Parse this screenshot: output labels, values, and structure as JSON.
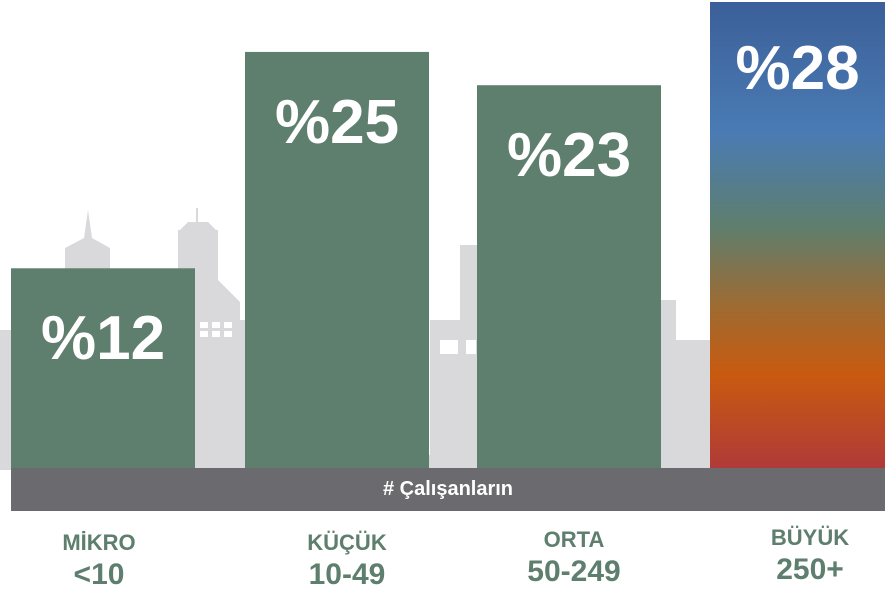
{
  "chart_data": {
    "type": "bar",
    "categories": [
      {
        "name": "MİKRO",
        "range": "<10"
      },
      {
        "name": "KÜÇÜK",
        "range": "10-49"
      },
      {
        "name": "ORTA",
        "range": "50-249"
      },
      {
        "name": "BÜYÜK",
        "range": "250+"
      }
    ],
    "values": [
      12,
      25,
      23,
      28
    ],
    "value_labels": [
      "%12",
      "%25",
      "%23",
      "%28"
    ],
    "xlabel": "# Çalışanların",
    "ylim": [
      0,
      28
    ],
    "grid": false,
    "colors": {
      "bar": "#5e7e6e",
      "highlight_gradient": [
        "#3c5f98",
        "#4a7bb4",
        "#5e7e6e",
        "#a06a30",
        "#c85a10",
        "#b03a38"
      ],
      "skyline": "#d9d9db",
      "axis_band": "#6a6a6f",
      "category_text": "#5e7e6e"
    }
  }
}
